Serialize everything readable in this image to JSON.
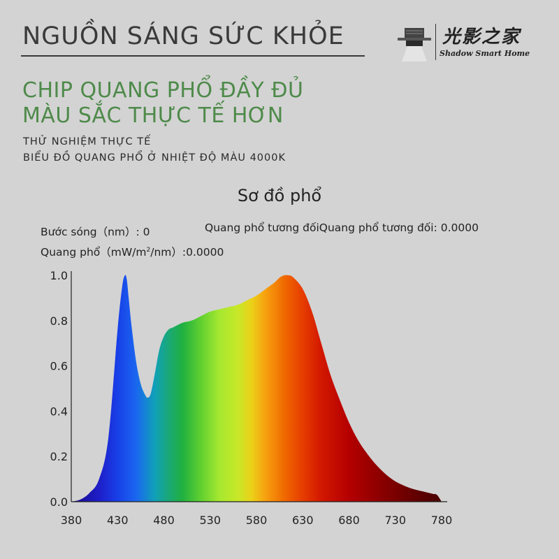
{
  "header": {
    "title": "NGUỒN SÁNG SỨC KHỎE",
    "logo_cn": "光影之家",
    "logo_en": "Shadow Smart Home"
  },
  "headline": {
    "line1": "CHIP QUANG PHỔ ĐẦY ĐỦ",
    "line2": "MÀU SẮC THỰC TẾ HƠN"
  },
  "subtitle": {
    "line1": "THỬ NGHIỆM THỰC TẾ",
    "line2": "BIỂU ĐỒ QUANG PHỔ Ở NHIỆT ĐỘ MÀU 4000K"
  },
  "readouts": {
    "wavelength": "Bước sóng（nm）: 0",
    "relative": "Quang phổ tương đốiQuang phổ tương đối:  0.0000",
    "spectrum_prefix": "Quang phổ（mW/m",
    "spectrum_sup": "2",
    "spectrum_suffix": "/nm）:0.0000"
  },
  "colors": {
    "background": "#d3d3d3",
    "headline_green": "#4e8a4a"
  },
  "chart_data": {
    "type": "area",
    "title": "Sơ đồ phổ",
    "xlabel": "",
    "ylabel": "",
    "xlim": [
      380,
      780
    ],
    "ylim": [
      0,
      1.0
    ],
    "x_ticks": [
      "380",
      "430",
      "480",
      "530",
      "580",
      "630",
      "680",
      "730",
      "780"
    ],
    "y_ticks": [
      "0.0",
      "0.2",
      "0.4",
      "0.6",
      "0.8",
      "1.0"
    ],
    "grid": false,
    "fill": "spectral",
    "x": [
      380,
      390,
      400,
      410,
      420,
      430,
      435,
      438,
      440,
      442,
      445,
      450,
      455,
      460,
      463,
      466,
      470,
      475,
      480,
      485,
      490,
      500,
      510,
      520,
      530,
      540,
      550,
      560,
      570,
      580,
      590,
      600,
      605,
      610,
      615,
      620,
      630,
      640,
      650,
      660,
      670,
      680,
      690,
      700,
      710,
      720,
      730,
      740,
      750,
      760,
      770,
      775,
      780
    ],
    "y": [
      0.0,
      0.01,
      0.04,
      0.1,
      0.28,
      0.76,
      0.95,
      1.0,
      0.98,
      0.9,
      0.78,
      0.62,
      0.52,
      0.47,
      0.46,
      0.48,
      0.56,
      0.67,
      0.73,
      0.76,
      0.77,
      0.79,
      0.8,
      0.82,
      0.84,
      0.85,
      0.86,
      0.87,
      0.89,
      0.91,
      0.94,
      0.97,
      0.99,
      1.0,
      1.0,
      0.99,
      0.94,
      0.84,
      0.7,
      0.56,
      0.45,
      0.35,
      0.27,
      0.21,
      0.16,
      0.12,
      0.09,
      0.07,
      0.055,
      0.045,
      0.035,
      0.03,
      0.0
    ]
  }
}
